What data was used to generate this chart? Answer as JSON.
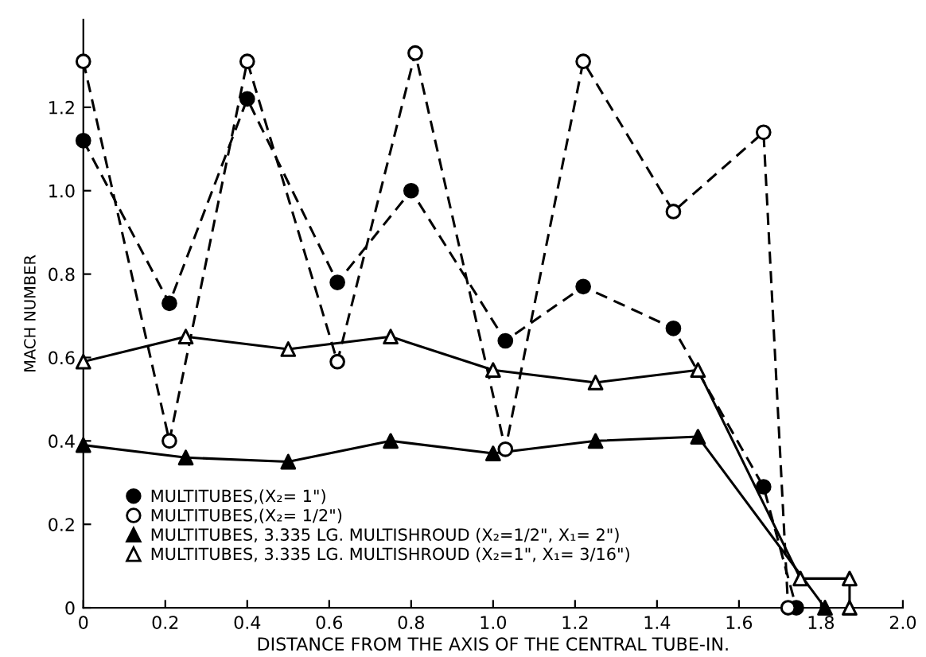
{
  "chart_data": {
    "type": "line",
    "xlabel": "DISTANCE FROM THE AXIS OF THE CENTRAL TUBE-IN.",
    "ylabel": "MACH NUMBER",
    "xlim": [
      0,
      2.0
    ],
    "ylim": [
      0,
      1.41
    ],
    "xticks": [
      0,
      0.2,
      0.4,
      0.6,
      0.8,
      {
        "value": 1.0,
        "label": "1.0"
      },
      1.2,
      1.4,
      1.6,
      1.8,
      {
        "value": 2.0,
        "label": "2.0"
      }
    ],
    "yticks": [
      0,
      0.2,
      0.4,
      0.6,
      0.8,
      {
        "value": 1.0,
        "label": "1.0"
      },
      1.2
    ],
    "grid": false,
    "legend": "bottom left",
    "series": [
      {
        "name": "MULTITUBES,(X₂= 1\")",
        "color": "#000000",
        "marker": "circle",
        "colors": [
          "#000000",
          "#000000",
          "#000000",
          "#000000",
          "#000000",
          "#000000",
          "#000000",
          "#000000",
          "#000000",
          "#000000"
        ],
        "line_style": "dashed",
        "x": [
          0,
          0.21,
          0.4,
          0.62,
          0.8,
          1.03,
          1.22,
          1.44,
          1.66,
          1.74
        ],
        "values": [
          1.12,
          0.73,
          1.22,
          0.78,
          1.0,
          0.64,
          0.77,
          0.67,
          0.29,
          0
        ]
      },
      {
        "name": "MULTITUBES,(X₂= 1/2\")",
        "color": "#000000",
        "marker": "circle",
        "colors": [
          "#ffffff",
          "#ffffff",
          "#ffffff",
          "#ffffff",
          "#ffffff",
          "#ffffff",
          "#ffffff",
          "#ffffff",
          "#ffffff",
          "#ffffff"
        ],
        "line_style": "dashed",
        "x": [
          0,
          0.21,
          0.4,
          0.62,
          0.81,
          1.03,
          1.22,
          1.44,
          1.66,
          1.72
        ],
        "values": [
          1.31,
          0.4,
          1.31,
          0.59,
          1.33,
          0.38,
          1.31,
          0.95,
          1.14,
          0
        ]
      },
      {
        "name": "MULTITUBES, 3.335 LG. MULTISHROUD (X₂=1/2\", X₁= 2\")",
        "color": "#000000",
        "marker": "triangle",
        "colors": [
          "#000000",
          "#000000",
          "#000000",
          "#000000",
          "#000000",
          "#000000",
          "#000000",
          "#000000"
        ],
        "line_style": "solid",
        "x": [
          0,
          0.25,
          0.5,
          0.75,
          1.0,
          1.25,
          1.5,
          1.81
        ],
        "values": [
          0.39,
          0.36,
          0.35,
          0.4,
          0.37,
          0.4,
          0.41,
          0
        ]
      },
      {
        "name": "MULTITUBES, 3.335 LG. MULTISHROUD (X₂=1\", X₁= 3/16\")",
        "color": "#000000",
        "marker": "triangle",
        "colors": [
          "#ffffff",
          "#ffffff",
          "#ffffff",
          "#ffffff",
          "#ffffff",
          "#ffffff",
          "#ffffff",
          "#ffffff",
          "#ffffff",
          "#ffffff"
        ],
        "line_style": "solid",
        "x": [
          0,
          0.25,
          0.5,
          0.75,
          1.0,
          1.25,
          1.5,
          1.75,
          1.87,
          1.87
        ],
        "values": [
          0.59,
          0.65,
          0.62,
          0.65,
          0.57,
          0.54,
          0.57,
          0.07,
          0.07,
          0
        ]
      }
    ]
  }
}
